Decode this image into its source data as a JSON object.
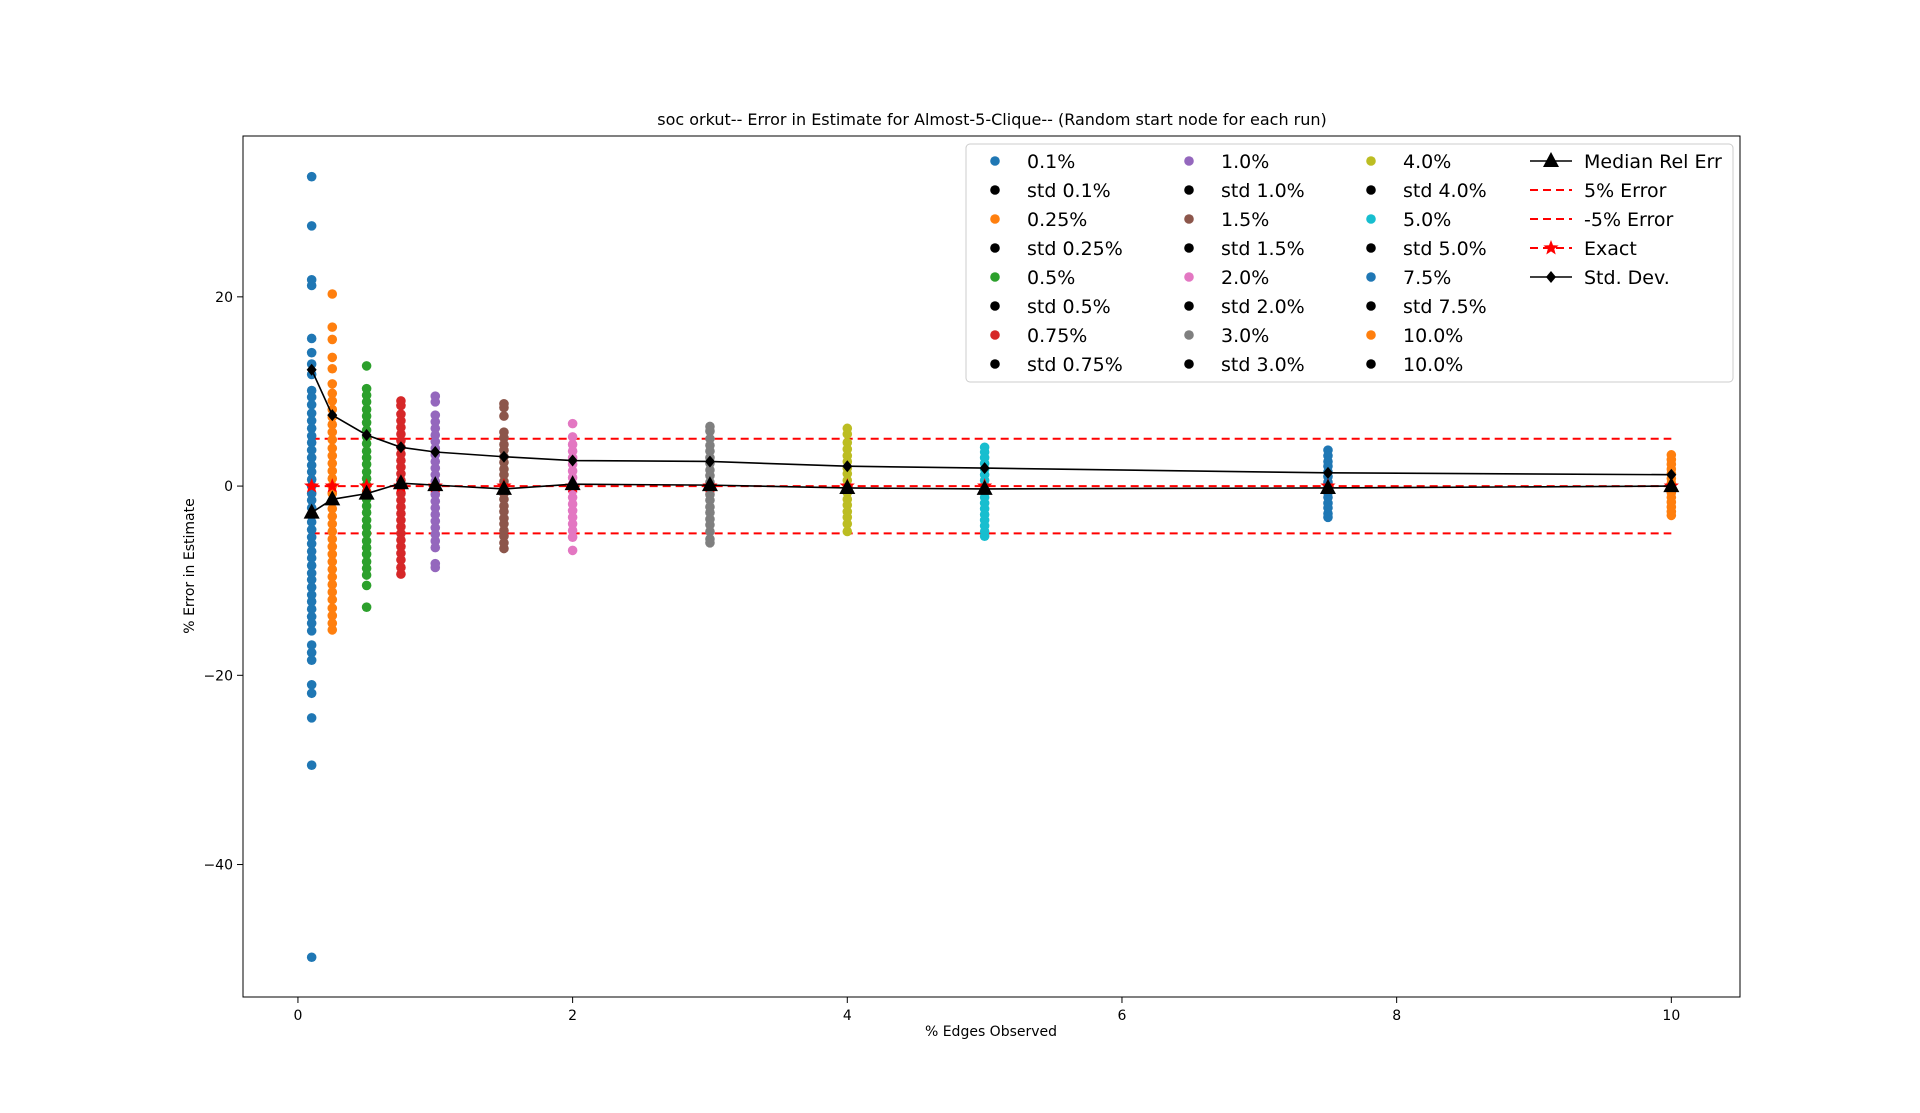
{
  "chart_data": {
    "type": "scatter",
    "title": "soc orkut-- Error in Estimate for Almost-5-Clique-- (Random start node for each run)",
    "xlabel": "% Edges Observed",
    "ylabel": "% Error in Estimate",
    "xlim": [
      -0.4,
      10.5
    ],
    "ylim": [
      -54,
      37
    ],
    "xticks": [
      0,
      2,
      4,
      6,
      8,
      10
    ],
    "yticks": [
      -40,
      -20,
      0,
      20
    ],
    "xtick_labels": [
      "0",
      "2",
      "4",
      "6",
      "8",
      "10"
    ],
    "ytick_labels": [
      "−40",
      "−20",
      "0",
      "20"
    ],
    "grid": false,
    "legend_position": "top-right",
    "series": [
      {
        "label": "0.1%",
        "x": 0.1,
        "color": "#1f77b4",
        "values": [
          32.7,
          27.5,
          21.8,
          21.2,
          15.6,
          14.1,
          12.9,
          11.8,
          10.1,
          9.4,
          8.6,
          7.7,
          6.9,
          6.1,
          5.3,
          4.6,
          3.8,
          3.0,
          2.2,
          1.5,
          0.7,
          0.0,
          -0.8,
          -1.5,
          -2.3,
          -3.1,
          -3.8,
          -4.6,
          -5.4,
          -6.1,
          -6.9,
          -7.6,
          -8.4,
          -9.2,
          -9.9,
          -10.7,
          -11.5,
          -12.2,
          -13.0,
          -13.8,
          -14.5,
          -15.3,
          -16.8,
          -17.6,
          -18.4,
          -21.0,
          -21.9,
          -24.5,
          -29.5,
          -49.8
        ]
      },
      {
        "label": "0.25%",
        "x": 0.25,
        "color": "#ff7f0e",
        "values": [
          20.3,
          16.8,
          15.5,
          13.6,
          12.4,
          10.8,
          9.8,
          9.0,
          8.1,
          7.3,
          6.5,
          5.7,
          4.9,
          4.0,
          3.2,
          2.4,
          1.6,
          0.8,
          0.0,
          -0.8,
          -1.6,
          -2.4,
          -3.2,
          -4.0,
          -4.8,
          -5.6,
          -6.4,
          -7.2,
          -8.0,
          -8.8,
          -9.6,
          -10.4,
          -11.2,
          -12.0,
          -12.9,
          -13.7,
          -14.5,
          -15.2
        ]
      },
      {
        "label": "0.5%",
        "x": 0.5,
        "color": "#2ca02c",
        "values": [
          12.7,
          10.3,
          9.6,
          8.9,
          8.1,
          7.4,
          6.7,
          5.9,
          5.2,
          4.5,
          3.7,
          3.0,
          2.3,
          1.5,
          0.8,
          0.1,
          -0.6,
          -1.4,
          -2.1,
          -2.8,
          -3.6,
          -4.3,
          -5.0,
          -5.8,
          -6.5,
          -7.2,
          -8.0,
          -8.7,
          -9.4,
          -10.5,
          -12.8
        ]
      },
      {
        "label": "0.75%",
        "x": 0.75,
        "color": "#d62728",
        "values": [
          9.0,
          8.5,
          7.6,
          6.9,
          6.2,
          5.5,
          4.8,
          4.1,
          3.4,
          2.7,
          2.0,
          1.3,
          0.6,
          -0.1,
          -0.8,
          -1.5,
          -2.2,
          -2.9,
          -3.6,
          -4.3,
          -5.0,
          -5.7,
          -6.4,
          -7.1,
          -7.8,
          -8.6,
          -9.3
        ]
      },
      {
        "label": "1.0%",
        "x": 1.0,
        "color": "#9467bd",
        "values": [
          9.5,
          8.9,
          7.5,
          6.8,
          6.1,
          5.4,
          4.7,
          4.0,
          3.3,
          2.6,
          1.9,
          1.2,
          0.5,
          -0.2,
          -0.9,
          -1.6,
          -2.3,
          -3.0,
          -3.7,
          -4.4,
          -5.1,
          -5.8,
          -6.5,
          -8.2,
          -8.6
        ]
      },
      {
        "label": "1.5%",
        "x": 1.5,
        "color": "#8c564b",
        "values": [
          8.7,
          8.3,
          7.4,
          5.7,
          5.1,
          4.4,
          3.8,
          3.1,
          2.5,
          1.8,
          1.2,
          0.5,
          -0.1,
          -0.8,
          -1.4,
          -2.1,
          -2.7,
          -3.4,
          -4.0,
          -4.7,
          -5.3,
          -6.0,
          -6.6
        ]
      },
      {
        "label": "2.0%",
        "x": 2.0,
        "color": "#e377c2",
        "values": [
          6.6,
          5.2,
          4.4,
          3.7,
          3.0,
          2.3,
          1.6,
          0.9,
          0.2,
          -0.5,
          -1.2,
          -1.9,
          -2.6,
          -3.3,
          -4.0,
          -4.7,
          -5.4,
          -6.8
        ]
      },
      {
        "label": "3.0%",
        "x": 3.0,
        "color": "#7f7f7f",
        "values": [
          6.3,
          5.8,
          5.0,
          4.3,
          3.7,
          3.0,
          2.4,
          1.7,
          1.1,
          0.4,
          -0.2,
          -0.9,
          -1.5,
          -2.2,
          -2.8,
          -3.5,
          -4.1,
          -4.8,
          -5.6,
          -6.0
        ]
      },
      {
        "label": "4.0%",
        "x": 4.0,
        "color": "#bcbd22",
        "values": [
          6.1,
          5.5,
          4.6,
          3.9,
          3.2,
          2.6,
          1.9,
          1.3,
          0.6,
          -0.1,
          -0.7,
          -1.4,
          -2.0,
          -2.7,
          -3.3,
          -4.0,
          -4.8
        ]
      },
      {
        "label": "5.0%",
        "x": 5.0,
        "color": "#17becf",
        "values": [
          4.1,
          3.6,
          3.0,
          2.4,
          1.8,
          1.2,
          0.6,
          0.0,
          -0.6,
          -1.2,
          -1.8,
          -2.4,
          -3.0,
          -3.6,
          -4.2,
          -4.8,
          -5.3
        ]
      },
      {
        "label": "7.5%",
        "x": 7.5,
        "color": "#1f77b4",
        "values": [
          3.8,
          3.2,
          2.6,
          2.1,
          1.5,
          1.0,
          0.4,
          -0.1,
          -0.7,
          -1.2,
          -1.8,
          -2.3,
          -2.9,
          -3.3
        ]
      },
      {
        "label": "10.0%",
        "x": 10.0,
        "color": "#ff7f0e",
        "values": [
          3.3,
          2.8,
          2.3,
          1.8,
          1.3,
          0.8,
          0.3,
          -0.2,
          -0.7,
          -1.2,
          -1.7,
          -2.2,
          -2.7,
          -3.1
        ]
      }
    ],
    "std_dev": {
      "label": "Std. Dev.",
      "x": [
        0.1,
        0.25,
        0.5,
        0.75,
        1.0,
        1.5,
        2.0,
        3.0,
        4.0,
        5.0,
        7.5,
        10.0
      ],
      "values": [
        12.3,
        7.5,
        5.4,
        4.1,
        3.6,
        3.1,
        2.7,
        2.6,
        2.1,
        1.9,
        1.4,
        1.2
      ]
    },
    "median_rel_err": {
      "label": "Median Rel Err",
      "x": [
        0.1,
        0.25,
        0.5,
        0.75,
        1.0,
        1.5,
        2.0,
        3.0,
        4.0,
        5.0,
        7.5,
        10.0
      ],
      "values": [
        -2.8,
        -1.4,
        -0.8,
        0.3,
        0.1,
        -0.3,
        0.2,
        0.1,
        -0.2,
        -0.3,
        -0.2,
        0.0
      ]
    },
    "exact": {
      "label": "Exact",
      "x": [
        0.1,
        0.25,
        0.5,
        0.75,
        1.0,
        1.5,
        2.0,
        3.0,
        4.0,
        5.0,
        7.5,
        10.0
      ],
      "values": [
        0,
        0,
        0,
        0,
        0,
        0,
        0,
        0,
        0,
        0,
        0,
        0
      ]
    },
    "error_bands": [
      {
        "label": "5% Error",
        "y": 5,
        "x_range": [
          0.1,
          10.0
        ],
        "color": "#ff0000"
      },
      {
        "label": "-5% Error",
        "y": -5,
        "x_range": [
          0.1,
          10.0
        ],
        "color": "#ff0000"
      }
    ],
    "legend": [
      {
        "label": "0.1%",
        "kind": "dot",
        "color": "#1f77b4"
      },
      {
        "label": "std 0.1%",
        "kind": "dot",
        "color": "#000000"
      },
      {
        "label": "0.25%",
        "kind": "dot",
        "color": "#ff7f0e"
      },
      {
        "label": "std 0.25%",
        "kind": "dot",
        "color": "#000000"
      },
      {
        "label": "0.5%",
        "kind": "dot",
        "color": "#2ca02c"
      },
      {
        "label": "std 0.5%",
        "kind": "dot",
        "color": "#000000"
      },
      {
        "label": "0.75%",
        "kind": "dot",
        "color": "#d62728"
      },
      {
        "label": "std 0.75%",
        "kind": "dot",
        "color": "#000000"
      },
      {
        "label": "1.0%",
        "kind": "dot",
        "color": "#9467bd"
      },
      {
        "label": "std 1.0%",
        "kind": "dot",
        "color": "#000000"
      },
      {
        "label": "1.5%",
        "kind": "dot",
        "color": "#8c564b"
      },
      {
        "label": "std 1.5%",
        "kind": "dot",
        "color": "#000000"
      },
      {
        "label": "2.0%",
        "kind": "dot",
        "color": "#e377c2"
      },
      {
        "label": "std 2.0%",
        "kind": "dot",
        "color": "#000000"
      },
      {
        "label": "3.0%",
        "kind": "dot",
        "color": "#7f7f7f"
      },
      {
        "label": "std 3.0%",
        "kind": "dot",
        "color": "#000000"
      },
      {
        "label": "4.0%",
        "kind": "dot",
        "color": "#bcbd22"
      },
      {
        "label": "std 4.0%",
        "kind": "dot",
        "color": "#000000"
      },
      {
        "label": "5.0%",
        "kind": "dot",
        "color": "#17becf"
      },
      {
        "label": "std 5.0%",
        "kind": "dot",
        "color": "#000000"
      },
      {
        "label": "7.5%",
        "kind": "dot",
        "color": "#1f77b4"
      },
      {
        "label": "std 7.5%",
        "kind": "dot",
        "color": "#000000"
      },
      {
        "label": "10.0%",
        "kind": "dot",
        "color": "#ff7f0e"
      },
      {
        "label": "10.0%",
        "kind": "dot",
        "color": "#000000"
      },
      {
        "label": "Median Rel Err",
        "kind": "triangle-line",
        "color": "#000000"
      },
      {
        "label": "5% Error",
        "kind": "dash",
        "color": "#ff0000"
      },
      {
        "label": "-5% Error",
        "kind": "dash",
        "color": "#ff0000"
      },
      {
        "label": "Exact",
        "kind": "star-dash",
        "color": "#ff0000"
      },
      {
        "label": "Std. Dev.",
        "kind": "diamond-line",
        "color": "#000000"
      }
    ]
  }
}
